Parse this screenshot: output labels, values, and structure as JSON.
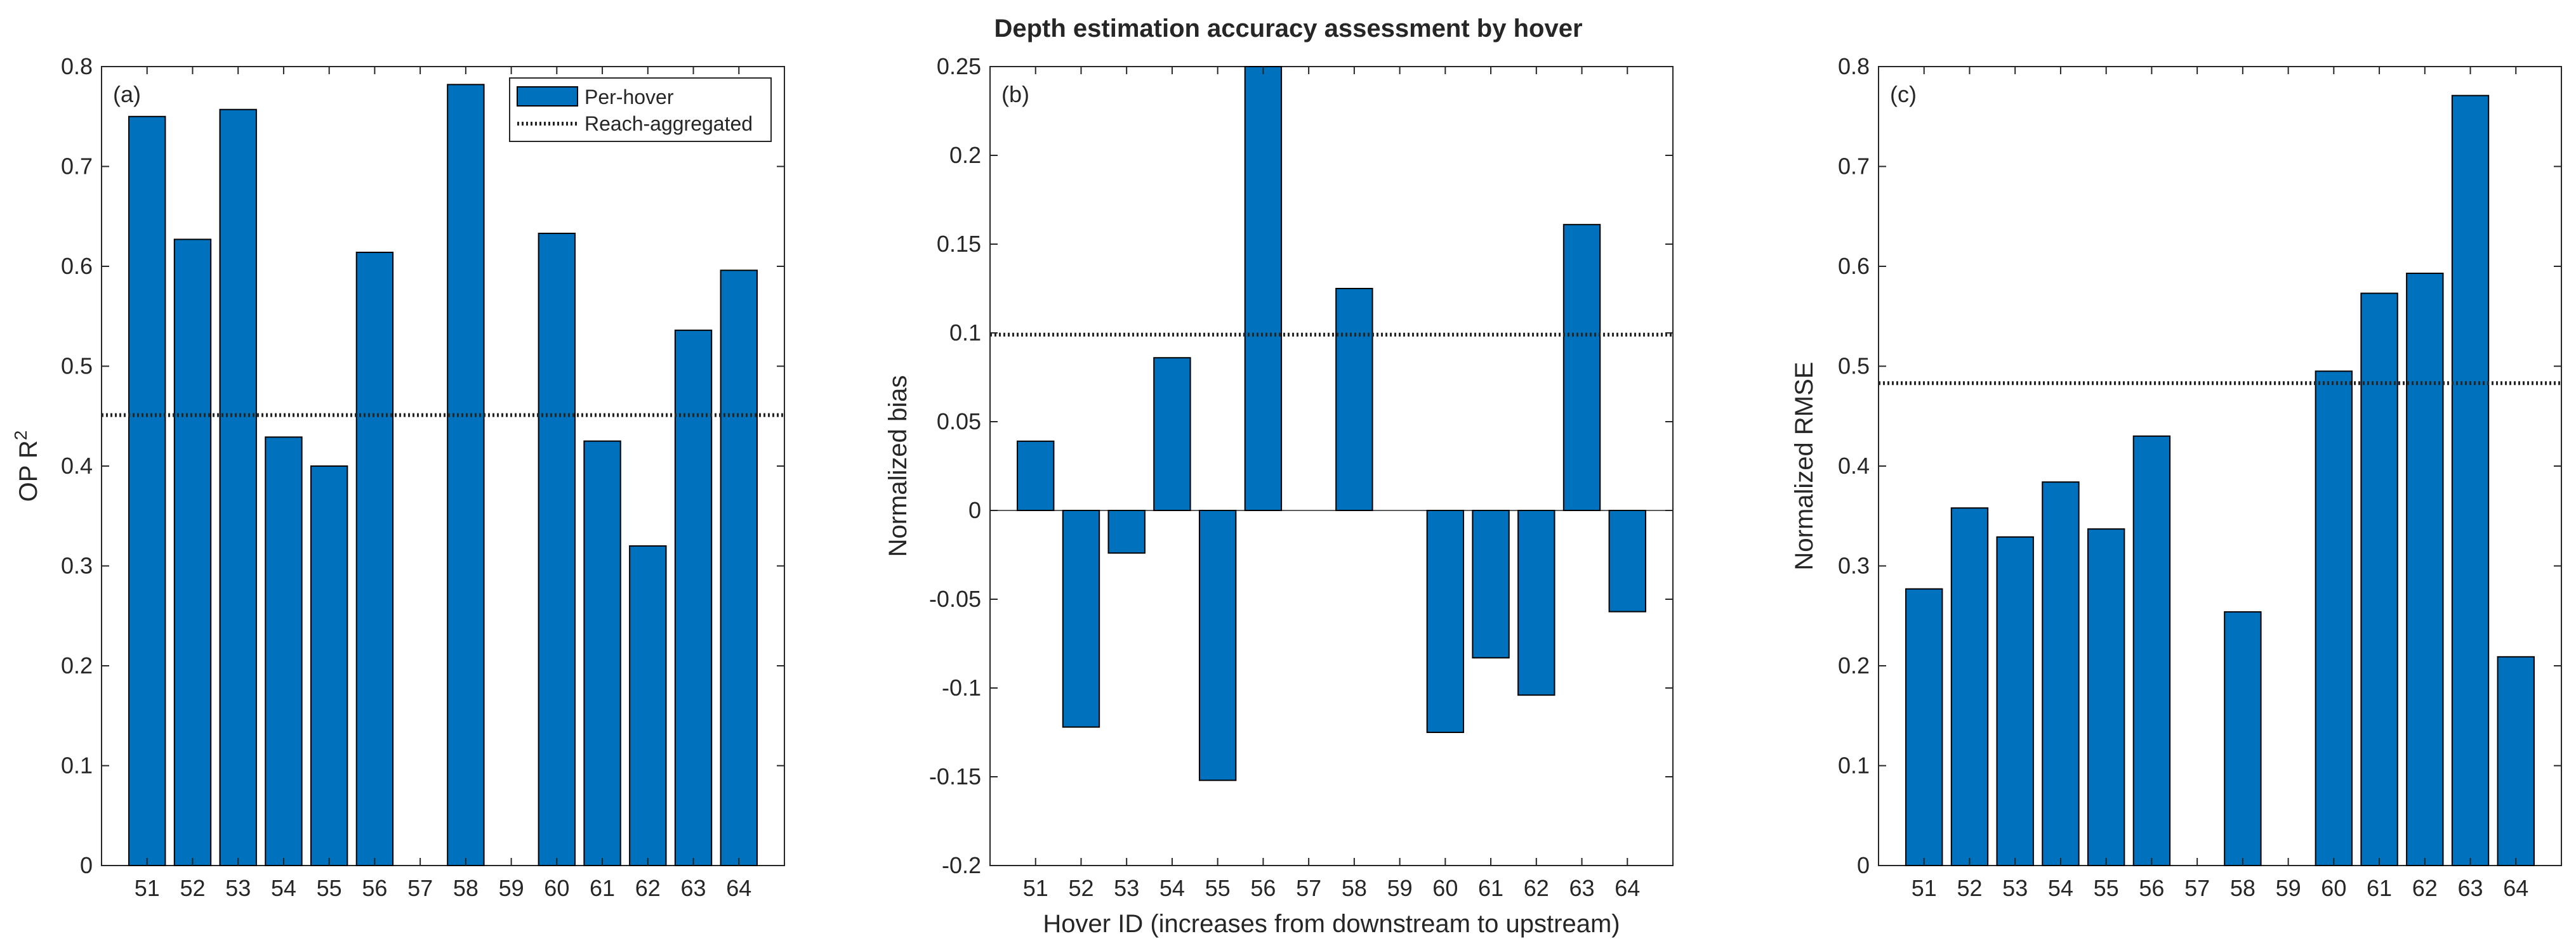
{
  "title": "Depth estimation accuracy assessment by hover",
  "colors": {
    "bar": "#0072bd",
    "edge": "#000000",
    "reference": "#262626",
    "axis": "#262626"
  },
  "legend": {
    "bar_label": "Per-hover",
    "line_label": "Reach-aggregated",
    "location": "top-right of panel (a)"
  },
  "chart_data": [
    {
      "type": "bar",
      "panel_label": "(a)",
      "ylabel_main": "OP R",
      "ylabel_sup": "2",
      "xlabel": "",
      "categories": [
        "51",
        "52",
        "53",
        "54",
        "55",
        "56",
        "57",
        "58",
        "59",
        "60",
        "61",
        "62",
        "63",
        "64"
      ],
      "values": [
        0.75,
        0.627,
        0.757,
        0.429,
        0.4,
        0.614,
        null,
        0.782,
        null,
        0.633,
        0.425,
        0.32,
        0.536,
        0.596
      ],
      "reference_line": 0.451,
      "ylim": [
        0,
        0.8
      ],
      "yticks": [
        0,
        0.1,
        0.2,
        0.3,
        0.4,
        0.5,
        0.6,
        0.7,
        0.8
      ],
      "ytick_labels": [
        "0",
        "0.1",
        "0.2",
        "0.3",
        "0.4",
        "0.5",
        "0.6",
        "0.7",
        "0.8"
      ]
    },
    {
      "type": "bar",
      "panel_label": "(b)",
      "ylabel_main": "Normalized bias",
      "ylabel_sup": "",
      "xlabel": "Hover ID (increases from downstream to upstream)",
      "categories": [
        "51",
        "52",
        "53",
        "54",
        "55",
        "56",
        "57",
        "58",
        "59",
        "60",
        "61",
        "62",
        "63",
        "64"
      ],
      "values": [
        0.039,
        -0.122,
        -0.024,
        0.086,
        -0.152,
        0.25,
        null,
        0.125,
        null,
        -0.125,
        -0.083,
        -0.104,
        0.161,
        -0.057
      ],
      "reference_line": 0.099,
      "ylim": [
        -0.2,
        0.25
      ],
      "yticks": [
        -0.2,
        -0.15,
        -0.1,
        -0.05,
        0,
        0.05,
        0.1,
        0.15,
        0.2,
        0.25
      ],
      "ytick_labels": [
        "-0.2",
        "-0.15",
        "-0.1",
        "-0.05",
        "0",
        "0.05",
        "0.1",
        "0.15",
        "0.2",
        "0.25"
      ]
    },
    {
      "type": "bar",
      "panel_label": "(c)",
      "ylabel_main": "Normalized RMSE",
      "ylabel_sup": "",
      "xlabel": "",
      "categories": [
        "51",
        "52",
        "53",
        "54",
        "55",
        "56",
        "57",
        "58",
        "59",
        "60",
        "61",
        "62",
        "63",
        "64"
      ],
      "values": [
        0.277,
        0.358,
        0.329,
        0.384,
        0.337,
        0.43,
        null,
        0.254,
        null,
        0.495,
        0.573,
        0.593,
        0.771,
        0.209
      ],
      "reference_line": 0.483,
      "ylim": [
        0,
        0.8
      ],
      "yticks": [
        0,
        0.1,
        0.2,
        0.3,
        0.4,
        0.5,
        0.6,
        0.7,
        0.8
      ],
      "ytick_labels": [
        "0",
        "0.1",
        "0.2",
        "0.3",
        "0.4",
        "0.5",
        "0.6",
        "0.7",
        "0.8"
      ]
    }
  ]
}
